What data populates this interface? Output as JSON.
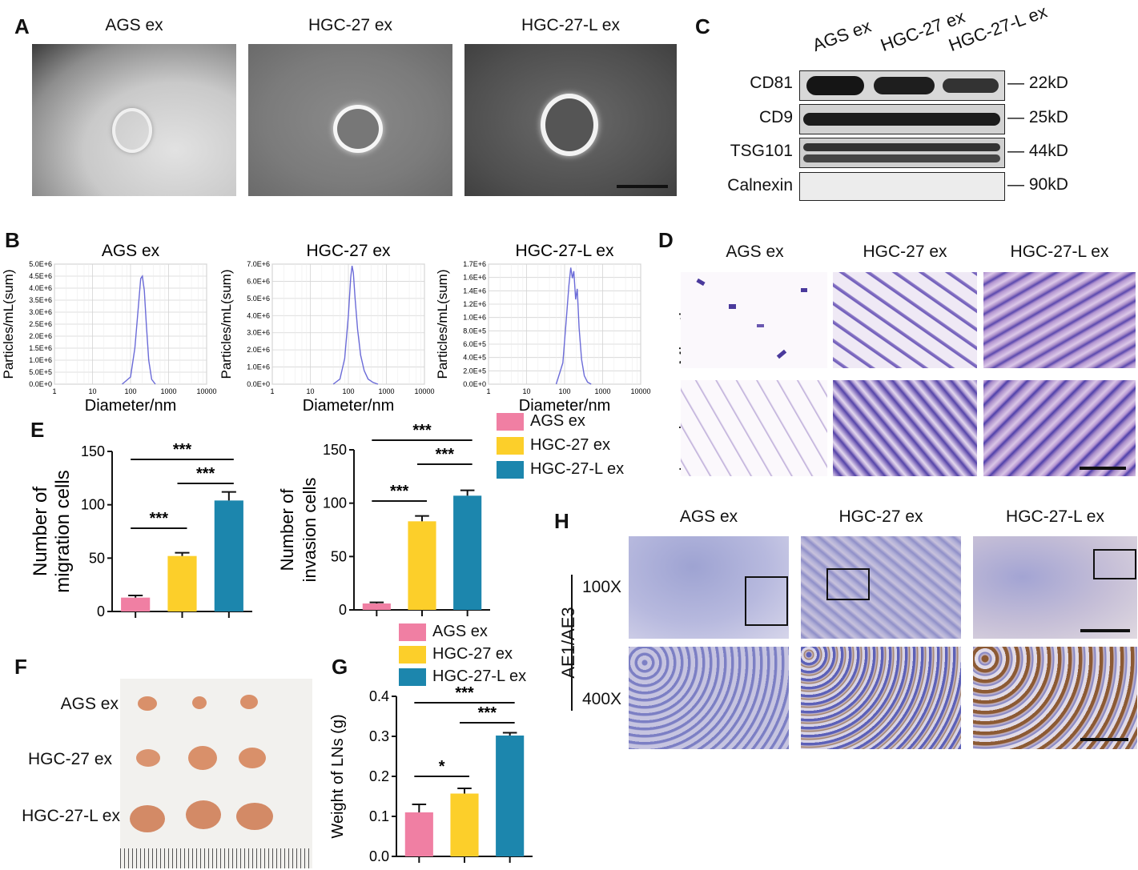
{
  "panels": {
    "A": {
      "letter": "A",
      "titles": [
        "AGS ex",
        "HGC-27 ex",
        "HGC-27-L ex"
      ]
    },
    "B": {
      "letter": "B"
    },
    "C": {
      "letter": "C",
      "lanes": [
        "AGS ex",
        "HGC-27 ex",
        "HGC-27-L ex"
      ],
      "bands": [
        {
          "name": "CD81",
          "size": "22kD"
        },
        {
          "name": "CD9",
          "size": "25kD"
        },
        {
          "name": "TSG101",
          "size": "44kD"
        },
        {
          "name": "Calnexin",
          "size": "90kD"
        }
      ]
    },
    "D": {
      "letter": "D",
      "titles": [
        "AGS ex",
        "HGC-27 ex",
        "HGC-27-L ex"
      ],
      "rows": [
        "Migration",
        "Invasion"
      ]
    },
    "E": {
      "letter": "E"
    },
    "F": {
      "letter": "F",
      "rows": [
        "AGS ex",
        "HGC-27 ex",
        "HGC-27-L ex"
      ]
    },
    "G": {
      "letter": "G"
    },
    "H": {
      "letter": "H",
      "titles": [
        "AGS ex",
        "HGC-27 ex",
        "HGC-27-L ex"
      ],
      "stain": "AE1/AE3",
      "mags": [
        "100X",
        "400X"
      ]
    }
  },
  "legend": {
    "entries": [
      "AGS ex",
      "HGC-27 ex",
      "HGC-27-L ex"
    ],
    "colors": [
      "#f07fa3",
      "#fccf2a",
      "#1c86ad"
    ]
  },
  "chart_data": [
    {
      "id": "B1",
      "type": "line",
      "title": "AGS ex",
      "xlabel": "Diameter/nm",
      "ylabel": "Particles/mL(sum)",
      "xscale": "log",
      "xlim": [
        1,
        10000
      ],
      "ylim": [
        0,
        5000000
      ],
      "xticks": [
        "1",
        "10",
        "100",
        "1000",
        "10000"
      ],
      "yticks": [
        "0.0E+0",
        "5.0E+5",
        "1.0E+6",
        "1.5E+6",
        "2.0E+6",
        "2.5E+6",
        "3.0E+6",
        "3.5E+6",
        "4.0E+6",
        "4.5E+6",
        "5.0E+6"
      ],
      "x": [
        60,
        100,
        130,
        160,
        185,
        205,
        230,
        260,
        300,
        360,
        450
      ],
      "y": [
        0,
        300000,
        1500000,
        3200000,
        4400000,
        4500000,
        3900000,
        2500000,
        1000000,
        200000,
        0
      ],
      "color": "#6b6bd8"
    },
    {
      "id": "B2",
      "type": "line",
      "title": "HGC-27 ex",
      "xlabel": "Diameter/nm",
      "ylabel": "Particles/mL(sum)",
      "xscale": "log",
      "xlim": [
        1,
        10000
      ],
      "ylim": [
        0,
        7000000
      ],
      "xticks": [
        "1",
        "10",
        "100",
        "1000",
        "10000"
      ],
      "yticks": [
        "0.0E+0",
        "1.0E+6",
        "2.0E+6",
        "3.0E+6",
        "4.0E+6",
        "5.0E+6",
        "6.0E+6",
        "7.0E+6"
      ],
      "x": [
        40,
        60,
        80,
        100,
        115,
        125,
        135,
        150,
        175,
        210,
        260,
        330,
        450,
        600
      ],
      "y": [
        0,
        300000,
        1500000,
        4000000,
        6200000,
        6900000,
        6500000,
        5000000,
        3200000,
        1700000,
        800000,
        300000,
        100000,
        0
      ],
      "color": "#6b6bd8"
    },
    {
      "id": "B3",
      "type": "line",
      "title": "HGC-27-L ex",
      "xlabel": "Diameter/nm",
      "ylabel": "Particles/mL(sum)",
      "xscale": "log",
      "xlim": [
        1,
        10000
      ],
      "ylim": [
        0,
        1700000
      ],
      "xticks": [
        "1",
        "10",
        "100",
        "1000",
        "10000"
      ],
      "yticks": [
        "0.0E+0",
        "2.0E+5",
        "4.0E+5",
        "6.0E+5",
        "8.0E+5",
        "1.0E+6",
        "1.2E+6",
        "1.4E+6",
        "1.6E+6",
        "1.7E+6"
      ],
      "x": [
        60,
        90,
        110,
        130,
        145,
        160,
        175,
        195,
        215,
        240,
        280,
        330,
        400,
        500
      ],
      "y": [
        0,
        300000,
        900000,
        1400000,
        1650000,
        1500000,
        1600000,
        1200000,
        1350000,
        800000,
        350000,
        120000,
        30000,
        0
      ],
      "color": "#6b6bd8"
    },
    {
      "id": "E1",
      "type": "bar",
      "ylabel": "Number of migration cells",
      "categories": [
        "AGS ex",
        "HGC-27 ex",
        "HGC-27-L ex"
      ],
      "values": [
        13,
        52,
        104
      ],
      "errors": [
        2,
        3,
        8
      ],
      "ylim": [
        0,
        150
      ],
      "yticks": [
        "0",
        "50",
        "100",
        "150"
      ],
      "significance": [
        {
          "from": 0,
          "to": 1,
          "label": "***"
        },
        {
          "from": 1,
          "to": 2,
          "label": "***"
        },
        {
          "from": 0,
          "to": 2,
          "label": "***"
        }
      ]
    },
    {
      "id": "E2",
      "type": "bar",
      "ylabel": "Number of invasion cells",
      "categories": [
        "AGS ex",
        "HGC-27 ex",
        "HGC-27-L ex"
      ],
      "values": [
        6,
        83,
        107
      ],
      "errors": [
        1,
        5,
        5
      ],
      "ylim": [
        0,
        150
      ],
      "yticks": [
        "0",
        "50",
        "100",
        "150"
      ],
      "significance": [
        {
          "from": 0,
          "to": 1,
          "label": "***"
        },
        {
          "from": 1,
          "to": 2,
          "label": "***"
        },
        {
          "from": 0,
          "to": 2,
          "label": "***"
        }
      ]
    },
    {
      "id": "G",
      "type": "bar",
      "ylabel": "Weight of LNs (g)",
      "categories": [
        "AGS ex",
        "HGC-27 ex",
        "HGC-27-L ex"
      ],
      "values": [
        0.11,
        0.157,
        0.302
      ],
      "errors": [
        0.02,
        0.013,
        0.007
      ],
      "ylim": [
        0,
        0.4
      ],
      "yticks": [
        "0.0",
        "0.1",
        "0.2",
        "0.3",
        "0.4"
      ],
      "significance": [
        {
          "from": 0,
          "to": 1,
          "label": "*"
        },
        {
          "from": 1,
          "to": 2,
          "label": "***"
        },
        {
          "from": 0,
          "to": 2,
          "label": "***"
        }
      ]
    }
  ]
}
